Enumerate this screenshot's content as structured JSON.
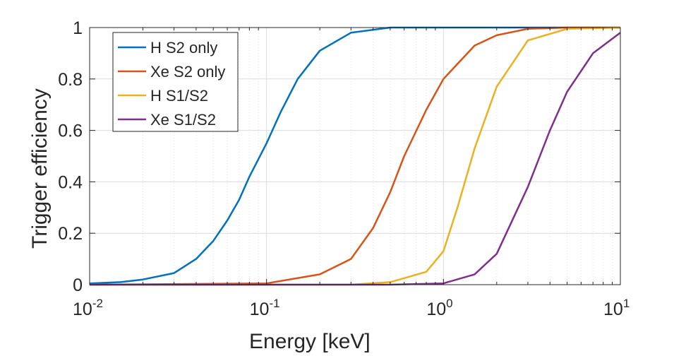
{
  "chart_data": {
    "type": "line",
    "title": "",
    "xlabel": "Energy [keV]",
    "ylabel": "Trigger efficiency",
    "xscale": "log",
    "xlim": [
      0.01,
      10
    ],
    "ylim": [
      0,
      1
    ],
    "xticks": [
      0.01,
      0.1,
      1,
      10
    ],
    "xtick_labels": [
      {
        "base": "10",
        "exp": "-2"
      },
      {
        "base": "10",
        "exp": "-1"
      },
      {
        "base": "10",
        "exp": "0"
      },
      {
        "base": "10",
        "exp": "1"
      }
    ],
    "yticks": [
      0,
      0.2,
      0.4,
      0.6,
      0.8,
      1
    ],
    "ytick_labels": [
      "0",
      "0.2",
      "0.4",
      "0.6",
      "0.8",
      "1"
    ],
    "grid": true,
    "legend_position": "top-left",
    "series": [
      {
        "name": "H S2 only",
        "color": "#0072BD",
        "x": [
          0.01,
          0.015,
          0.02,
          0.03,
          0.04,
          0.05,
          0.06,
          0.07,
          0.08,
          0.1,
          0.12,
          0.15,
          0.2,
          0.3,
          0.5,
          10
        ],
        "y": [
          0.005,
          0.01,
          0.02,
          0.045,
          0.1,
          0.17,
          0.25,
          0.33,
          0.42,
          0.55,
          0.67,
          0.8,
          0.91,
          0.98,
          1.0,
          1.0
        ]
      },
      {
        "name": "Xe S2 only",
        "color": "#D95319",
        "x": [
          0.01,
          0.1,
          0.2,
          0.3,
          0.4,
          0.5,
          0.6,
          0.8,
          1.0,
          1.5,
          2,
          3,
          5,
          10
        ],
        "y": [
          0,
          0.005,
          0.04,
          0.1,
          0.22,
          0.36,
          0.5,
          0.68,
          0.8,
          0.93,
          0.97,
          0.995,
          1.0,
          1.0
        ]
      },
      {
        "name": "H S1/S2",
        "color": "#EDB120",
        "x": [
          0.01,
          0.3,
          0.5,
          0.8,
          1.0,
          1.2,
          1.5,
          2,
          3,
          5,
          10
        ],
        "y": [
          0,
          0,
          0.01,
          0.05,
          0.13,
          0.3,
          0.53,
          0.77,
          0.95,
          0.995,
          1.0
        ]
      },
      {
        "name": "Xe S1/S2",
        "color": "#7E2F8E",
        "x": [
          0.01,
          0.5,
          1,
          1.5,
          2,
          3,
          4,
          5,
          7,
          10
        ],
        "y": [
          0,
          0,
          0.005,
          0.04,
          0.12,
          0.38,
          0.6,
          0.75,
          0.9,
          0.98
        ]
      }
    ]
  }
}
